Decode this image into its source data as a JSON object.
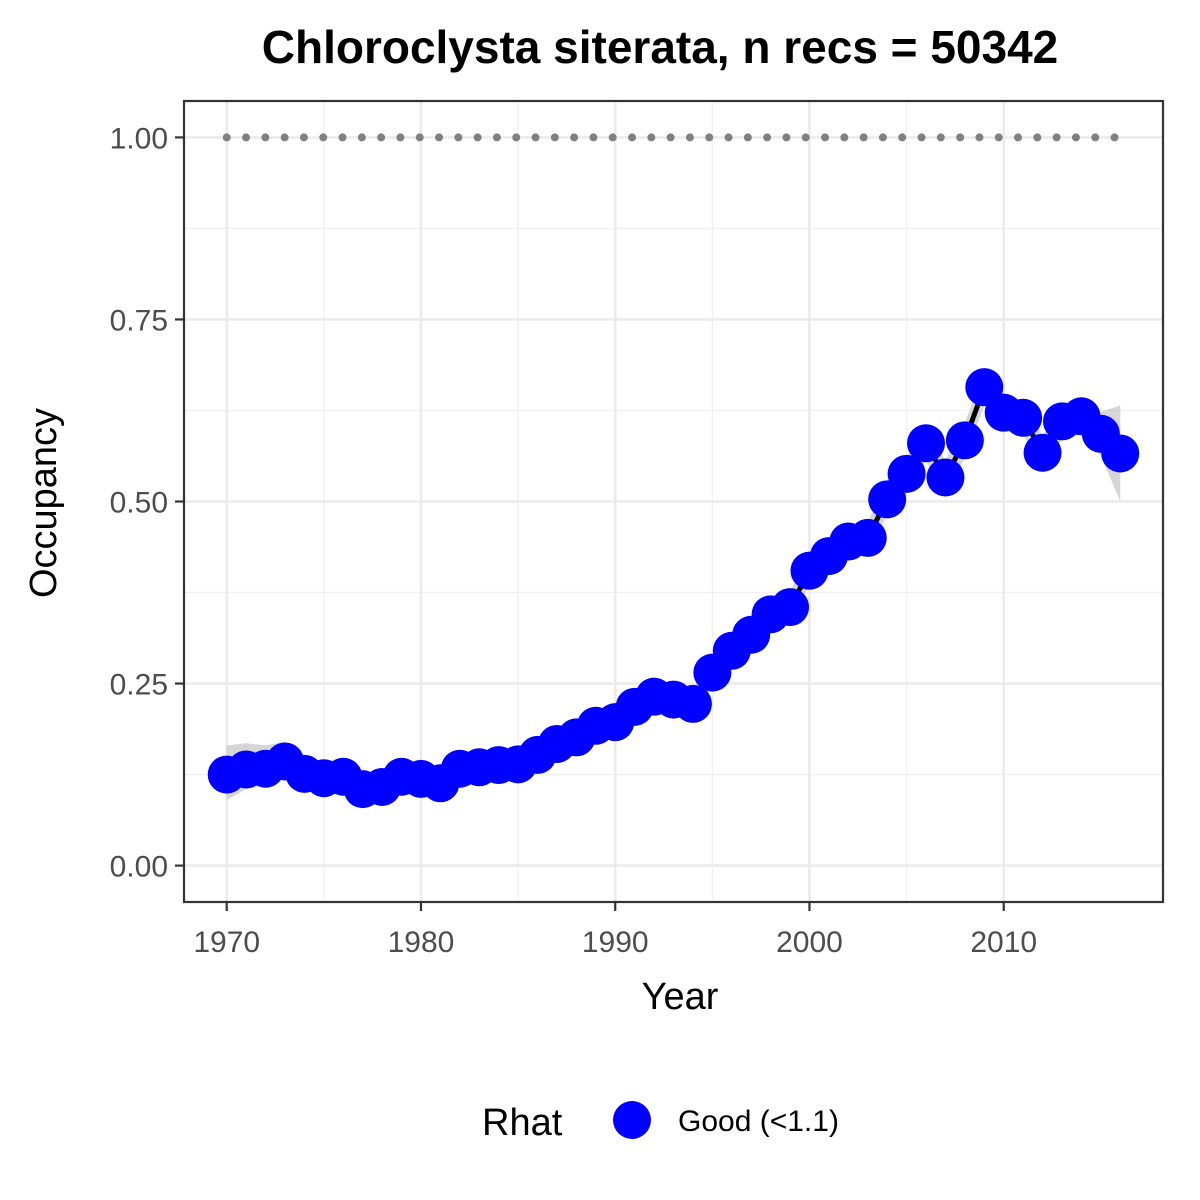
{
  "chart_data": {
    "type": "line",
    "title": "Chloroclysta siterata, n recs = 50342",
    "xlabel": "Year",
    "ylabel": "Occupancy",
    "xlim": [
      1967.8,
      2018.2
    ],
    "ylim": [
      -0.05,
      1.05
    ],
    "x_ticks": [
      1970,
      1980,
      1990,
      2000,
      2010
    ],
    "y_ticks": [
      0,
      0.25,
      0.5,
      0.75,
      1
    ],
    "x_tick_labels": [
      "1970",
      "1980",
      "1990",
      "2000",
      "2010"
    ],
    "y_tick_labels": [
      "0.00",
      "0.25",
      "0.50",
      "0.75",
      "1.00"
    ],
    "grid": true,
    "legend": {
      "title": "Rhat",
      "position": "bottom",
      "entries": [
        {
          "label": "Good (<1.1)",
          "color": "#0000ff"
        }
      ]
    },
    "reference_line": {
      "y": 1.0,
      "style": "dotted",
      "color": "#808080"
    },
    "colors": {
      "points": "#0000ff",
      "line": "#000000",
      "band": "#c8c8c8",
      "reference": "#808080"
    },
    "x": [
      1970,
      1971,
      1972,
      1973,
      1974,
      1975,
      1976,
      1977,
      1978,
      1979,
      1980,
      1981,
      1982,
      1983,
      1984,
      1985,
      1986,
      1987,
      1988,
      1989,
      1990,
      1991,
      1992,
      1993,
      1994,
      1995,
      1996,
      1997,
      1998,
      1999,
      2000,
      2001,
      2002,
      2003,
      2004,
      2005,
      2006,
      2007,
      2008,
      2009,
      2010,
      2011,
      2012,
      2013,
      2014,
      2015,
      2016
    ],
    "series": [
      {
        "values": [
          0.125,
          0.132,
          0.133,
          0.143,
          0.126,
          0.12,
          0.122,
          0.105,
          0.108,
          0.122,
          0.119,
          0.113,
          0.133,
          0.135,
          0.138,
          0.139,
          0.152,
          0.167,
          0.176,
          0.192,
          0.197,
          0.218,
          0.232,
          0.228,
          0.222,
          0.265,
          0.295,
          0.317,
          0.345,
          0.355,
          0.405,
          0.425,
          0.445,
          0.45,
          0.503,
          0.538,
          0.58,
          0.533,
          0.584,
          0.657,
          0.622,
          0.615,
          0.567,
          0.61,
          0.617,
          0.593,
          0.566
        ],
        "lower": [
          0.09,
          0.105,
          0.11,
          0.12,
          0.108,
          0.103,
          0.105,
          0.09,
          0.093,
          0.105,
          0.103,
          0.098,
          0.115,
          0.118,
          0.122,
          0.122,
          0.136,
          0.15,
          0.159,
          0.175,
          0.18,
          0.2,
          0.213,
          0.209,
          0.204,
          0.245,
          0.275,
          0.297,
          0.324,
          0.334,
          0.385,
          0.404,
          0.424,
          0.428,
          0.482,
          0.515,
          0.556,
          0.511,
          0.56,
          0.632,
          0.598,
          0.592,
          0.545,
          0.585,
          0.592,
          0.563,
          0.5
        ],
        "upper": [
          0.165,
          0.168,
          0.165,
          0.17,
          0.15,
          0.142,
          0.142,
          0.125,
          0.128,
          0.142,
          0.138,
          0.132,
          0.152,
          0.155,
          0.158,
          0.158,
          0.171,
          0.186,
          0.195,
          0.211,
          0.216,
          0.238,
          0.252,
          0.248,
          0.242,
          0.287,
          0.317,
          0.339,
          0.367,
          0.377,
          0.427,
          0.447,
          0.467,
          0.473,
          0.525,
          0.561,
          0.604,
          0.556,
          0.608,
          0.682,
          0.646,
          0.639,
          0.59,
          0.635,
          0.643,
          0.623,
          0.632
        ]
      }
    ]
  }
}
